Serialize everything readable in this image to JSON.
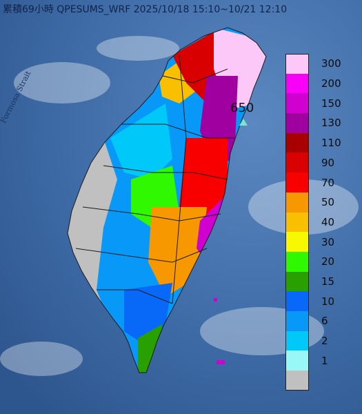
{
  "title": "累積69小時 QPESUMS_WRF 2025/10/18 15:10~10/21 12:10",
  "strait_label": "Formosa Strait",
  "max_marker": {
    "value": "650",
    "icon": "triangle-marker-icon"
  },
  "legend": {
    "items": [
      {
        "label": "300",
        "color": "#fcc8f8"
      },
      {
        "label": "200",
        "color": "#f800f8"
      },
      {
        "label": "150",
        "color": "#d000d0"
      },
      {
        "label": "130",
        "color": "#a000a0"
      },
      {
        "label": "110",
        "color": "#a80000"
      },
      {
        "label": "90",
        "color": "#d80000"
      },
      {
        "label": "70",
        "color": "#f80000"
      },
      {
        "label": "50",
        "color": "#f89800"
      },
      {
        "label": "40",
        "color": "#f8c000"
      },
      {
        "label": "30",
        "color": "#f8f800"
      },
      {
        "label": "20",
        "color": "#30f800"
      },
      {
        "label": "15",
        "color": "#28a000"
      },
      {
        "label": "10",
        "color": "#0868f8"
      },
      {
        "label": "6",
        "color": "#0898f8"
      },
      {
        "label": "2",
        "color": "#00c8f8"
      },
      {
        "label": "1",
        "color": "#98f8f8"
      },
      {
        "label": "",
        "color": "#c0c0c0"
      }
    ]
  }
}
